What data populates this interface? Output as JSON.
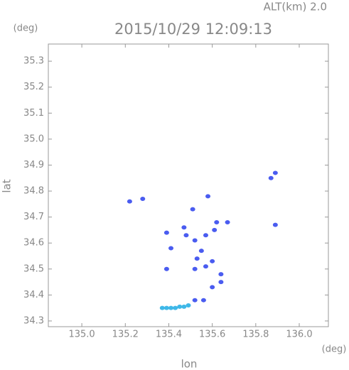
{
  "chart_data": {
    "type": "scatter",
    "title": "2015/10/29 12:09:13",
    "subtitle": "ALT(km) 2.0",
    "y_unit": "(deg)",
    "x_unit": "(deg)",
    "x_label": "lon",
    "y_label": "lat",
    "xlim": [
      134.846,
      136.134
    ],
    "ylim": [
      34.278,
      35.366
    ],
    "xticks": [
      {
        "value": 135.0,
        "label": "135.0"
      },
      135.2,
      135.4,
      135.6,
      135.8,
      {
        "value": 136.0,
        "label": "136.0"
      }
    ],
    "yticks": [
      34.3,
      34.4,
      34.5,
      34.6,
      34.7,
      34.8,
      34.9,
      {
        "value": 35.0,
        "label": "35.0"
      },
      35.1,
      35.2,
      35.3
    ],
    "series": [
      {
        "color": "#4a5cf0",
        "x": [
          135.22,
          135.28,
          135.58,
          135.51,
          135.39,
          135.47,
          135.48,
          135.52,
          135.57,
          135.62,
          135.67,
          135.61,
          135.55,
          135.53,
          135.52,
          135.57,
          135.41,
          135.39,
          135.6,
          135.64,
          135.64,
          135.6,
          135.56,
          135.52,
          135.89,
          135.87,
          135.89
        ],
        "y": [
          34.76,
          34.77,
          34.78,
          34.73,
          34.64,
          34.66,
          34.63,
          34.61,
          34.63,
          34.68,
          34.68,
          34.65,
          34.57,
          34.54,
          34.5,
          34.51,
          34.58,
          34.5,
          34.53,
          34.48,
          34.45,
          34.43,
          34.38,
          34.38,
          34.67,
          34.85,
          34.87
        ]
      },
      {
        "color": "#3fb8e8",
        "x": [
          135.37,
          135.39,
          135.41,
          135.43,
          135.45,
          135.47,
          135.49
        ],
        "y": [
          34.35,
          34.35,
          34.35,
          34.35,
          34.355,
          34.355,
          34.36
        ]
      }
    ]
  }
}
